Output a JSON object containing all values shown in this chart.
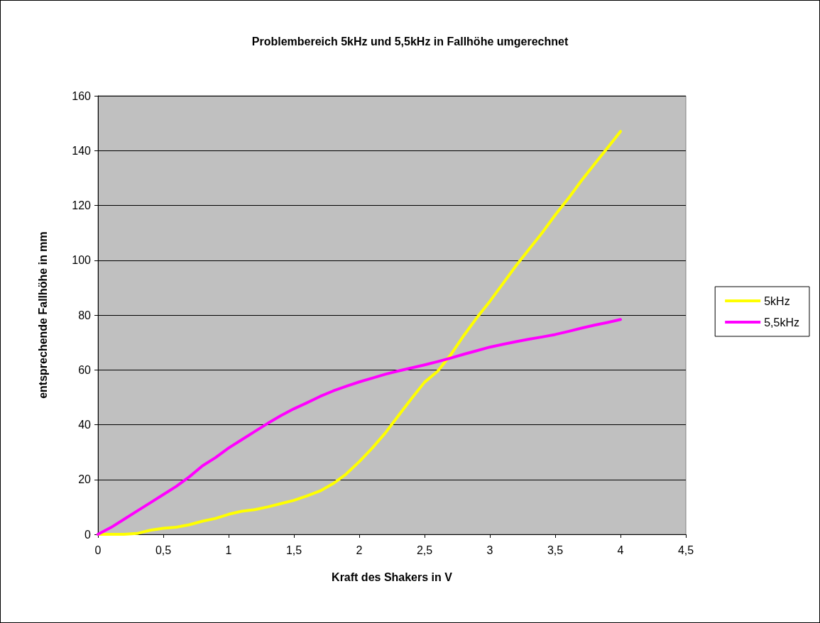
{
  "chart_data": {
    "type": "line",
    "title": "Problembereich 5kHz und 5,5kHz in Fallhöhe umgerechnet",
    "xlabel": "Kraft des Shakers in V",
    "ylabel": "entsprechende Fallhöhe in mm",
    "x": [
      0,
      0.1,
      0.2,
      0.3,
      0.4,
      0.5,
      0.6,
      0.7,
      0.8,
      0.9,
      1,
      1.1,
      1.2,
      1.3,
      1.4,
      1.5,
      1.6,
      1.7,
      1.8,
      1.9,
      2,
      2.1,
      2.2,
      2.3,
      2.4,
      2.5,
      2.6,
      2.7,
      2.8,
      2.9,
      3,
      3.1,
      3.2,
      3.3,
      3.4,
      3.5,
      3.6,
      3.7,
      3.8,
      3.9,
      4
    ],
    "series": [
      {
        "name": "5kHz",
        "color": "#ffff00",
        "values": [
          0,
          0,
          0,
          0.3,
          1.5,
          2.2,
          2.6,
          3.5,
          4.8,
          5.8,
          7.3,
          8.4,
          9,
          10,
          11.2,
          12.4,
          14,
          15.8,
          18.5,
          22,
          26.5,
          31.5,
          37,
          43.3,
          49.5,
          55.5,
          59.5,
          65.5,
          72.5,
          79,
          85,
          91.5,
          98,
          104,
          110,
          116.5,
          122.5,
          129,
          135,
          141,
          147
        ]
      },
      {
        "name": "5,5kHz",
        "color": "#ff00ff",
        "values": [
          0,
          2.5,
          5.5,
          8.5,
          11.5,
          14.5,
          17.5,
          21,
          25,
          28,
          31.5,
          34.5,
          37.5,
          40.5,
          43.3,
          45.8,
          48,
          50.3,
          52.3,
          54,
          55.6,
          57,
          58.4,
          59.6,
          60.7,
          61.8,
          63,
          64.3,
          65.7,
          67,
          68.3,
          69.3,
          70.3,
          71.2,
          72,
          72.9,
          74,
          75.2,
          76.3,
          77.3,
          78.4
        ]
      }
    ],
    "xlim": [
      0,
      4.5
    ],
    "xticks": [
      0,
      {
        "value": 0.5,
        "label": "0,5"
      },
      1,
      {
        "value": 1.5,
        "label": "1,5"
      },
      2,
      {
        "value": 2.5,
        "label": "2,5"
      },
      3,
      {
        "value": 3.5,
        "label": "3,5"
      },
      4,
      {
        "value": 4.5,
        "label": "4,5"
      }
    ],
    "ylim": [
      0,
      160
    ],
    "yticks": [
      0,
      20,
      40,
      60,
      80,
      100,
      120,
      140,
      160
    ],
    "grid": "y",
    "legend": "right",
    "marker": "none",
    "line_style": "solid"
  }
}
